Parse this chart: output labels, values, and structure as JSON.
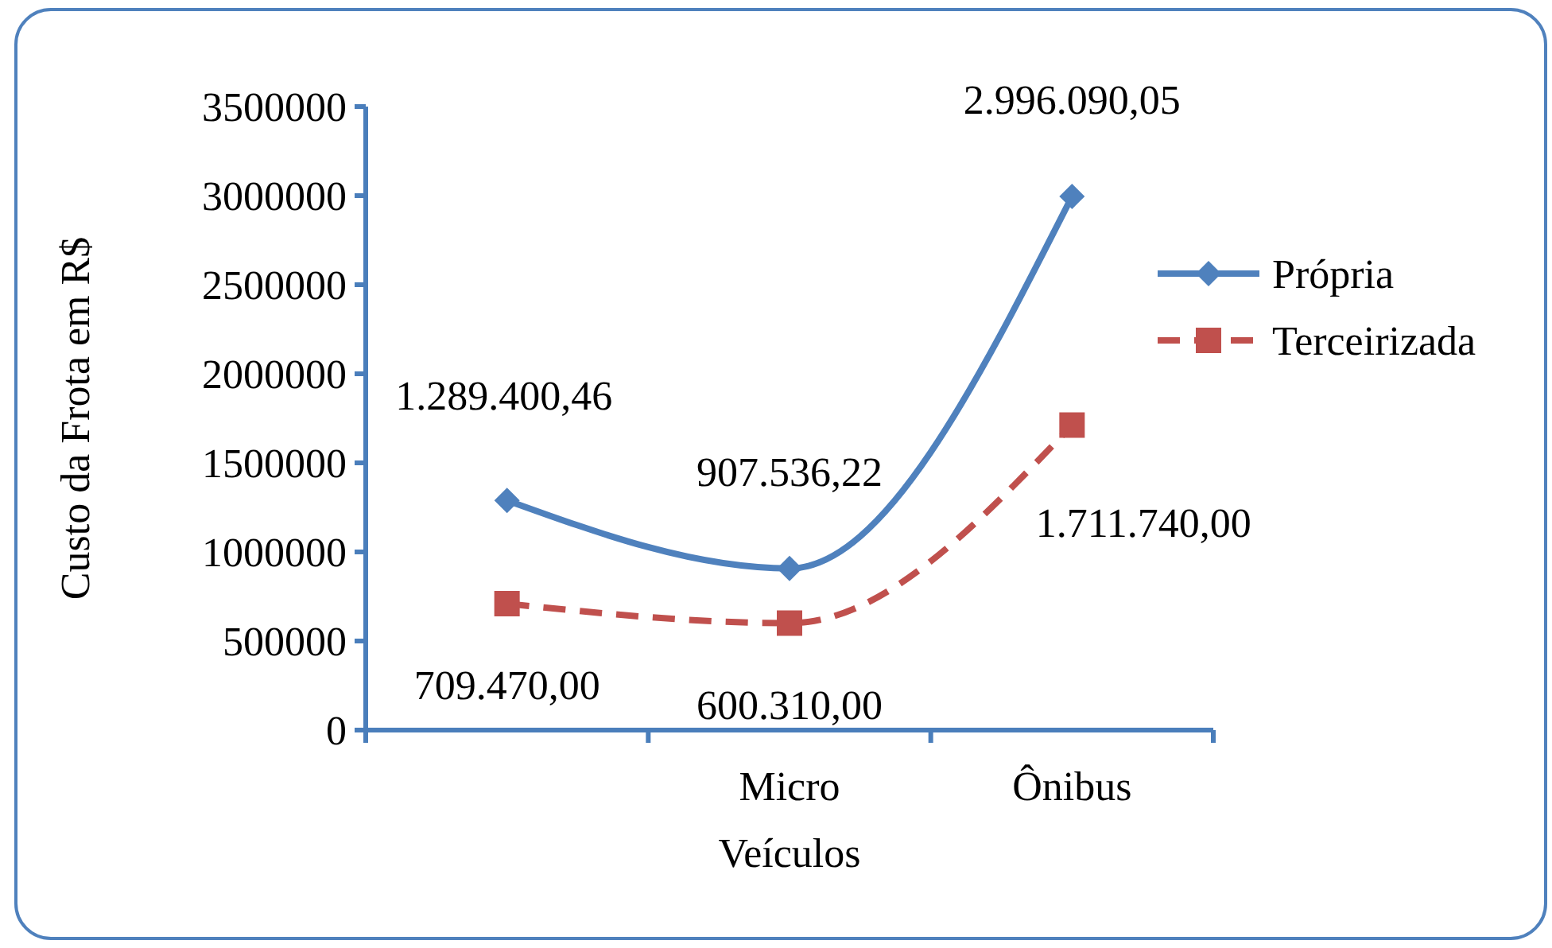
{
  "chart_data": {
    "type": "line",
    "xlabel": "Veículos",
    "ylabel": "Custo da Frota  em R$",
    "categories": [
      null,
      "Micro",
      "Ônibus"
    ],
    "ylim": [
      0,
      3500000
    ],
    "yticks": [
      0,
      500000,
      1000000,
      1500000,
      2000000,
      2500000,
      3000000,
      3500000
    ],
    "grid": false,
    "legend": "right",
    "series": [
      {
        "name": "Própria",
        "color": "#4f81bd",
        "marker": "diamond",
        "line_style": "solid",
        "values": [
          1289400.46,
          907536.22,
          2996090.05
        ],
        "value_labels": [
          "1.289.400,46",
          "907.536,22",
          "2.996.090,05"
        ]
      },
      {
        "name": "Terceirizada",
        "color": "#c0504d",
        "marker": "square",
        "line_style": "dashed",
        "values": [
          709470,
          600310,
          1711740
        ],
        "value_labels": [
          "709.470,00",
          "600.310,00",
          "1.711.740,00"
        ]
      }
    ]
  }
}
